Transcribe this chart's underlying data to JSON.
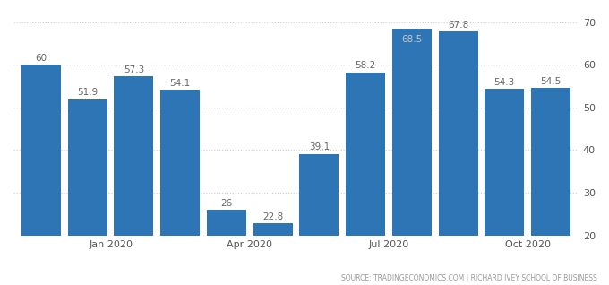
{
  "x_positions": [
    0,
    1,
    2,
    3,
    4,
    5,
    6,
    7,
    8,
    9,
    10,
    11
  ],
  "values": [
    60,
    51.9,
    57.3,
    54.1,
    26,
    22.8,
    39.1,
    58.2,
    68.5,
    67.8,
    54.3,
    54.5
  ],
  "bar_color": "#2e75b6",
  "label_color_normal": "#666666",
  "label_color_on_bar": "#c8c8c8",
  "yticks": [
    20,
    30,
    40,
    50,
    60,
    70
  ],
  "ymin": 20,
  "ymax": 72,
  "xtick_labels": [
    "Jan 2020",
    "Apr 2020",
    "Jul 2020",
    "Oct 2020"
  ],
  "xtick_positions": [
    1.5,
    4.5,
    7.5,
    10.5
  ],
  "source_text": "SOURCE: TRADINGECONOMICS.COM | RICHARD IVEY SCHOOL OF BUSINESS",
  "grid_color": "#cccccc",
  "background_color": "#ffffff",
  "bar_width": 0.85
}
